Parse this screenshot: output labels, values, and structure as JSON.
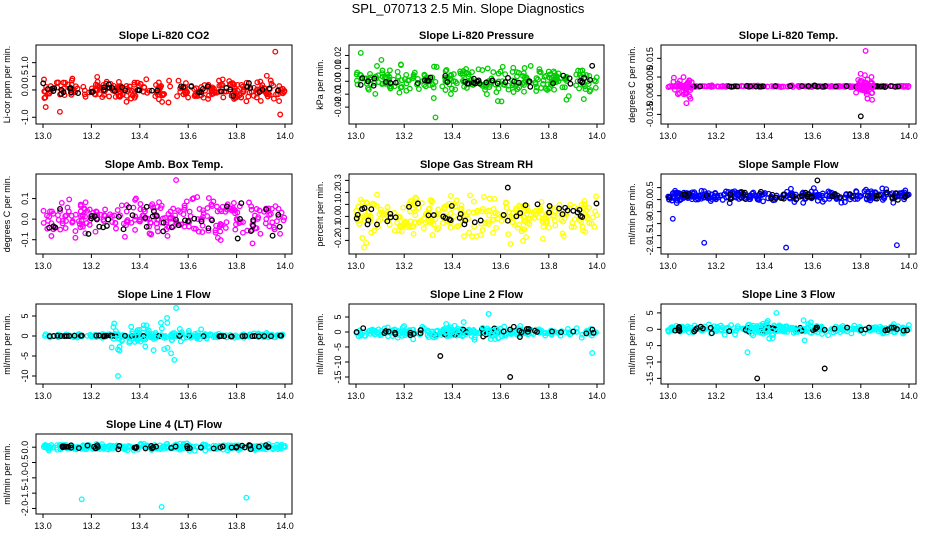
{
  "page_title": "SPL_070713  2.5 Min. Slope Diagnostics",
  "colors": {
    "red": "#ff0000",
    "green": "#00cc00",
    "magenta": "#ff00ff",
    "yellow": "#ffff00",
    "blue": "#0000ff",
    "cyan": "#00ffff",
    "black": "#000000"
  },
  "chart_data": [
    {
      "type": "scatter",
      "title": "Slope Li-820 CO2",
      "ylabel": "Li-cor ppm per min.",
      "xlim": [
        13.0,
        14.0
      ],
      "ylim": [
        -1.1,
        1.5
      ],
      "xticks": [
        13.0,
        13.2,
        13.4,
        13.6,
        13.8,
        14.0
      ],
      "yticks": [
        -1.0,
        0.0,
        0.5,
        1.0
      ],
      "ytick_labels": [
        "-1.0",
        "0.0",
        "0.5",
        "1.0"
      ],
      "series": [
        {
          "color": "red",
          "center": 0.0,
          "spread": 0.3,
          "n": 260
        },
        {
          "color": "black",
          "center": 0.0,
          "spread": 0.15,
          "n": 45
        }
      ],
      "outliers": [
        {
          "x": 13.96,
          "y": 1.4,
          "c": "red"
        },
        {
          "x": 13.98,
          "y": -0.9,
          "c": "red"
        },
        {
          "x": 13.07,
          "y": -0.8,
          "c": "red"
        }
      ]
    },
    {
      "type": "scatter",
      "title": "Slope Li-820 Pressure",
      "ylabel": "kPa per min.",
      "xlim": [
        13.0,
        14.0
      ],
      "ylim": [
        -0.03,
        0.025
      ],
      "xticks": [
        13.0,
        13.2,
        13.4,
        13.6,
        13.8,
        14.0
      ],
      "yticks": [
        -0.02,
        -0.01,
        0.0,
        0.01,
        0.02
      ],
      "ytick_labels": [
        "-0.02",
        "-0.01",
        "0.00",
        "0.01",
        "0.02"
      ],
      "series": [
        {
          "color": "green",
          "center": 0.0,
          "spread": 0.009,
          "n": 260
        },
        {
          "color": "black",
          "center": 0.0,
          "spread": 0.003,
          "n": 45
        }
      ],
      "outliers": [
        {
          "x": 13.02,
          "y": 0.022,
          "c": "green"
        },
        {
          "x": 13.33,
          "y": -0.028,
          "c": "green"
        },
        {
          "x": 13.98,
          "y": 0.012,
          "c": "black"
        }
      ]
    },
    {
      "type": "scatter",
      "title": "Slope Li-820 Temp.",
      "ylabel": "degrees C per min.",
      "xlim": [
        13.0,
        14.0
      ],
      "ylim": [
        -0.018,
        0.02
      ],
      "xticks": [
        13.0,
        13.2,
        13.4,
        13.6,
        13.8,
        14.0
      ],
      "yticks": [
        -0.015,
        -0.005,
        0.005,
        0.015
      ],
      "ytick_labels": [
        "-0.015",
        "-0.005",
        "0.005",
        "0.015"
      ],
      "series": [
        {
          "color": "magenta",
          "center": 0.0,
          "spread": 0.0003,
          "n": 200
        },
        {
          "color": "black",
          "center": 0.0,
          "spread": 0.0003,
          "n": 40
        }
      ],
      "clusters": [
        {
          "x0": 13.02,
          "x1": 13.1,
          "spread": 0.007,
          "c": "magenta",
          "n": 40
        },
        {
          "x0": 13.78,
          "x1": 13.85,
          "spread": 0.008,
          "c": "magenta",
          "n": 45
        }
      ],
      "outliers": [
        {
          "x": 13.82,
          "y": 0.019,
          "c": "magenta"
        },
        {
          "x": 13.8,
          "y": -0.016,
          "c": "black"
        }
      ]
    },
    {
      "type": "scatter",
      "title": "Slope Amb. Box Temp.",
      "ylabel": "degrees C per min.",
      "xlim": [
        13.0,
        14.0
      ],
      "ylim": [
        -0.15,
        0.2
      ],
      "xticks": [
        13.0,
        13.2,
        13.4,
        13.6,
        13.8,
        14.0
      ],
      "yticks": [
        -0.1,
        0.0,
        0.1
      ],
      "ytick_labels": [
        "-0.1",
        "0.0",
        "0.1"
      ],
      "series": [
        {
          "color": "magenta",
          "center": 0.0,
          "spread": 0.075,
          "n": 260
        },
        {
          "color": "black",
          "center": 0.0,
          "spread": 0.06,
          "n": 45
        }
      ],
      "outliers": [
        {
          "x": 13.55,
          "y": 0.19,
          "c": "magenta"
        }
      ]
    },
    {
      "type": "scatter",
      "title": "Slope Gas Stream RH",
      "ylabel": "percent per min.",
      "xlim": [
        13.0,
        14.0
      ],
      "ylim": [
        -0.28,
        0.32
      ],
      "xticks": [
        13.0,
        13.2,
        13.4,
        13.6,
        13.8,
        14.0
      ],
      "yticks": [
        -0.2,
        -0.1,
        0.0,
        0.1,
        0.2,
        0.3
      ],
      "ytick_labels": [
        "-0.2",
        "-0.1",
        "0.0",
        "0.1",
        "0.2",
        "0.3"
      ],
      "series": [
        {
          "color": "yellow",
          "center": 0.0,
          "spread": 0.13,
          "n": 300
        },
        {
          "color": "black",
          "center": 0.0,
          "spread": 0.09,
          "n": 45
        }
      ],
      "outliers": [
        {
          "x": 13.63,
          "y": 0.24,
          "c": "black"
        }
      ]
    },
    {
      "type": "scatter",
      "title": "Slope Sample Flow",
      "ylabel": "ml/min per min.",
      "xlim": [
        13.0,
        14.0
      ],
      "ylim": [
        -2.1,
        0.9
      ],
      "xticks": [
        13.0,
        13.2,
        13.4,
        13.6,
        13.8,
        14.0
      ],
      "yticks": [
        -2.0,
        -1.5,
        -1.0,
        -0.5,
        0.0,
        0.5
      ],
      "ytick_labels": [
        "-2.0",
        "-1.5",
        "-1.0",
        "-0.5",
        "0.0",
        "0.5"
      ],
      "series": [
        {
          "color": "blue",
          "center": 0.15,
          "spread": 0.2,
          "n": 280
        },
        {
          "color": "black",
          "center": 0.15,
          "spread": 0.15,
          "n": 45
        }
      ],
      "outliers": [
        {
          "x": 13.15,
          "y": -1.8,
          "c": "blue"
        },
        {
          "x": 13.49,
          "y": -2.0,
          "c": "blue"
        },
        {
          "x": 13.95,
          "y": -1.9,
          "c": "blue"
        },
        {
          "x": 13.62,
          "y": 0.8,
          "c": "black"
        },
        {
          "x": 13.02,
          "y": -0.8,
          "c": "blue"
        }
      ]
    },
    {
      "type": "scatter",
      "title": "Slope Line 1 Flow",
      "ylabel": "ml/min per min.",
      "xlim": [
        13.0,
        14.0
      ],
      "ylim": [
        -11,
        7
      ],
      "xticks": [
        13.0,
        13.2,
        13.4,
        13.6,
        13.8,
        14.0
      ],
      "yticks": [
        -10,
        -5,
        0,
        5
      ],
      "ytick_labels": [
        "-10",
        "-5",
        "0",
        "5"
      ],
      "series": [
        {
          "color": "cyan",
          "center": 0.0,
          "spread": 0.5,
          "n": 200
        },
        {
          "color": "black",
          "center": 0.0,
          "spread": 0.15,
          "n": 45
        }
      ],
      "clusters": [
        {
          "x0": 13.28,
          "x1": 13.66,
          "spread": 4.0,
          "c": "cyan",
          "n": 60
        }
      ],
      "outliers": [
        {
          "x": 13.31,
          "y": -10,
          "c": "cyan"
        },
        {
          "x": 13.55,
          "y": 7,
          "c": "cyan"
        }
      ]
    },
    {
      "type": "scatter",
      "title": "Slope Line 2 Flow",
      "ylabel": "ml/min per min.",
      "xlim": [
        13.0,
        14.0
      ],
      "ylim": [
        -16,
        8
      ],
      "xticks": [
        13.0,
        13.2,
        13.4,
        13.6,
        13.8,
        14.0
      ],
      "yticks": [
        -15,
        -10,
        -5,
        0,
        5
      ],
      "ytick_labels": [
        "-15",
        "-10",
        "-5",
        "0",
        "5"
      ],
      "series": [
        {
          "color": "cyan",
          "center": 0.0,
          "spread": 1.2,
          "n": 260
        },
        {
          "color": "black",
          "center": 0.0,
          "spread": 1.2,
          "n": 45
        }
      ],
      "clusters": [
        {
          "x0": 13.3,
          "x1": 13.6,
          "spread": 4.0,
          "c": "cyan",
          "n": 40
        }
      ],
      "outliers": [
        {
          "x": 13.64,
          "y": -15,
          "c": "black"
        },
        {
          "x": 13.35,
          "y": -8,
          "c": "black"
        },
        {
          "x": 13.98,
          "y": -7,
          "c": "cyan"
        },
        {
          "x": 13.55,
          "y": 6,
          "c": "cyan"
        }
      ]
    },
    {
      "type": "scatter",
      "title": "Slope Line 3 Flow",
      "ylabel": "ml/min per min.",
      "xlim": [
        13.0,
        14.0
      ],
      "ylim": [
        -15.5,
        6.5
      ],
      "xticks": [
        13.0,
        13.2,
        13.4,
        13.6,
        13.8,
        14.0
      ],
      "yticks": [
        -15,
        -10,
        -5,
        0,
        5
      ],
      "ytick_labels": [
        "-15",
        "-10",
        "-5",
        "0",
        "5"
      ],
      "series": [
        {
          "color": "cyan",
          "center": 0.0,
          "spread": 1.0,
          "n": 260
        },
        {
          "color": "black",
          "center": 0.0,
          "spread": 0.8,
          "n": 45
        }
      ],
      "clusters": [
        {
          "x0": 13.3,
          "x1": 13.6,
          "spread": 3.5,
          "c": "cyan",
          "n": 40
        }
      ],
      "outliers": [
        {
          "x": 13.37,
          "y": -15,
          "c": "black"
        },
        {
          "x": 13.65,
          "y": -12,
          "c": "black"
        },
        {
          "x": 13.33,
          "y": -7,
          "c": "cyan"
        },
        {
          "x": 13.45,
          "y": 5,
          "c": "cyan"
        }
      ]
    },
    {
      "type": "scatter",
      "title": "Slope Line 4 (LT) Flow",
      "ylabel": "ml/min per min.",
      "xlim": [
        13.0,
        14.0
      ],
      "ylim": [
        -2.05,
        0.3
      ],
      "xticks": [
        13.0,
        13.2,
        13.4,
        13.6,
        13.8,
        14.0
      ],
      "yticks": [
        -2.0,
        -1.5,
        -1.0,
        -0.5,
        0.0
      ],
      "ytick_labels": [
        "-2.0",
        "-1.5",
        "-1.0",
        "-0.5",
        "0.0"
      ],
      "series": [
        {
          "color": "cyan",
          "center": 0.0,
          "spread": 0.08,
          "n": 280
        },
        {
          "color": "black",
          "center": 0.0,
          "spread": 0.06,
          "n": 45
        }
      ],
      "outliers": [
        {
          "x": 13.16,
          "y": -1.7,
          "c": "cyan"
        },
        {
          "x": 13.49,
          "y": -1.95,
          "c": "cyan"
        },
        {
          "x": 13.84,
          "y": -1.65,
          "c": "cyan"
        }
      ]
    }
  ]
}
